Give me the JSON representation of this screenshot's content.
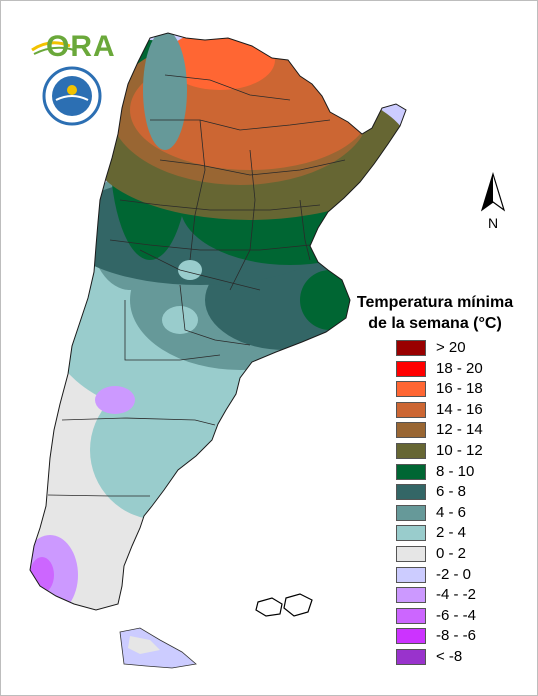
{
  "logo": {
    "ora_text": "ORA"
  },
  "north_arrow": {
    "label": "N"
  },
  "legend": {
    "title_line1": "Temperatura mínima",
    "title_line2": "de la semana (°C)",
    "items": [
      {
        "label": "> 20",
        "color": "#990000"
      },
      {
        "label": "18 - 20",
        "color": "#ff0000"
      },
      {
        "label": "16 - 18",
        "color": "#ff6633"
      },
      {
        "label": "14 - 16",
        "color": "#cc6633"
      },
      {
        "label": "12 - 14",
        "color": "#996633"
      },
      {
        "label": "10 - 12",
        "color": "#666633"
      },
      {
        "label": "8 - 10",
        "color": "#006633"
      },
      {
        "label": "6 - 8",
        "color": "#336666"
      },
      {
        "label": "4 - 6",
        "color": "#669999"
      },
      {
        "label": "2 - 4",
        "color": "#99cccc"
      },
      {
        "label": "0 - 2",
        "color": "#e6e6e6"
      },
      {
        "label": "-2 - 0",
        "color": "#ccccff"
      },
      {
        "label": "-4 - -2",
        "color": "#cc99ff"
      },
      {
        "label": "-6 - -4",
        "color": "#cc66ff"
      },
      {
        "label": "-8 - -6",
        "color": "#cc33ff"
      },
      {
        "label": "< -8",
        "color": "#9933cc"
      }
    ]
  }
}
